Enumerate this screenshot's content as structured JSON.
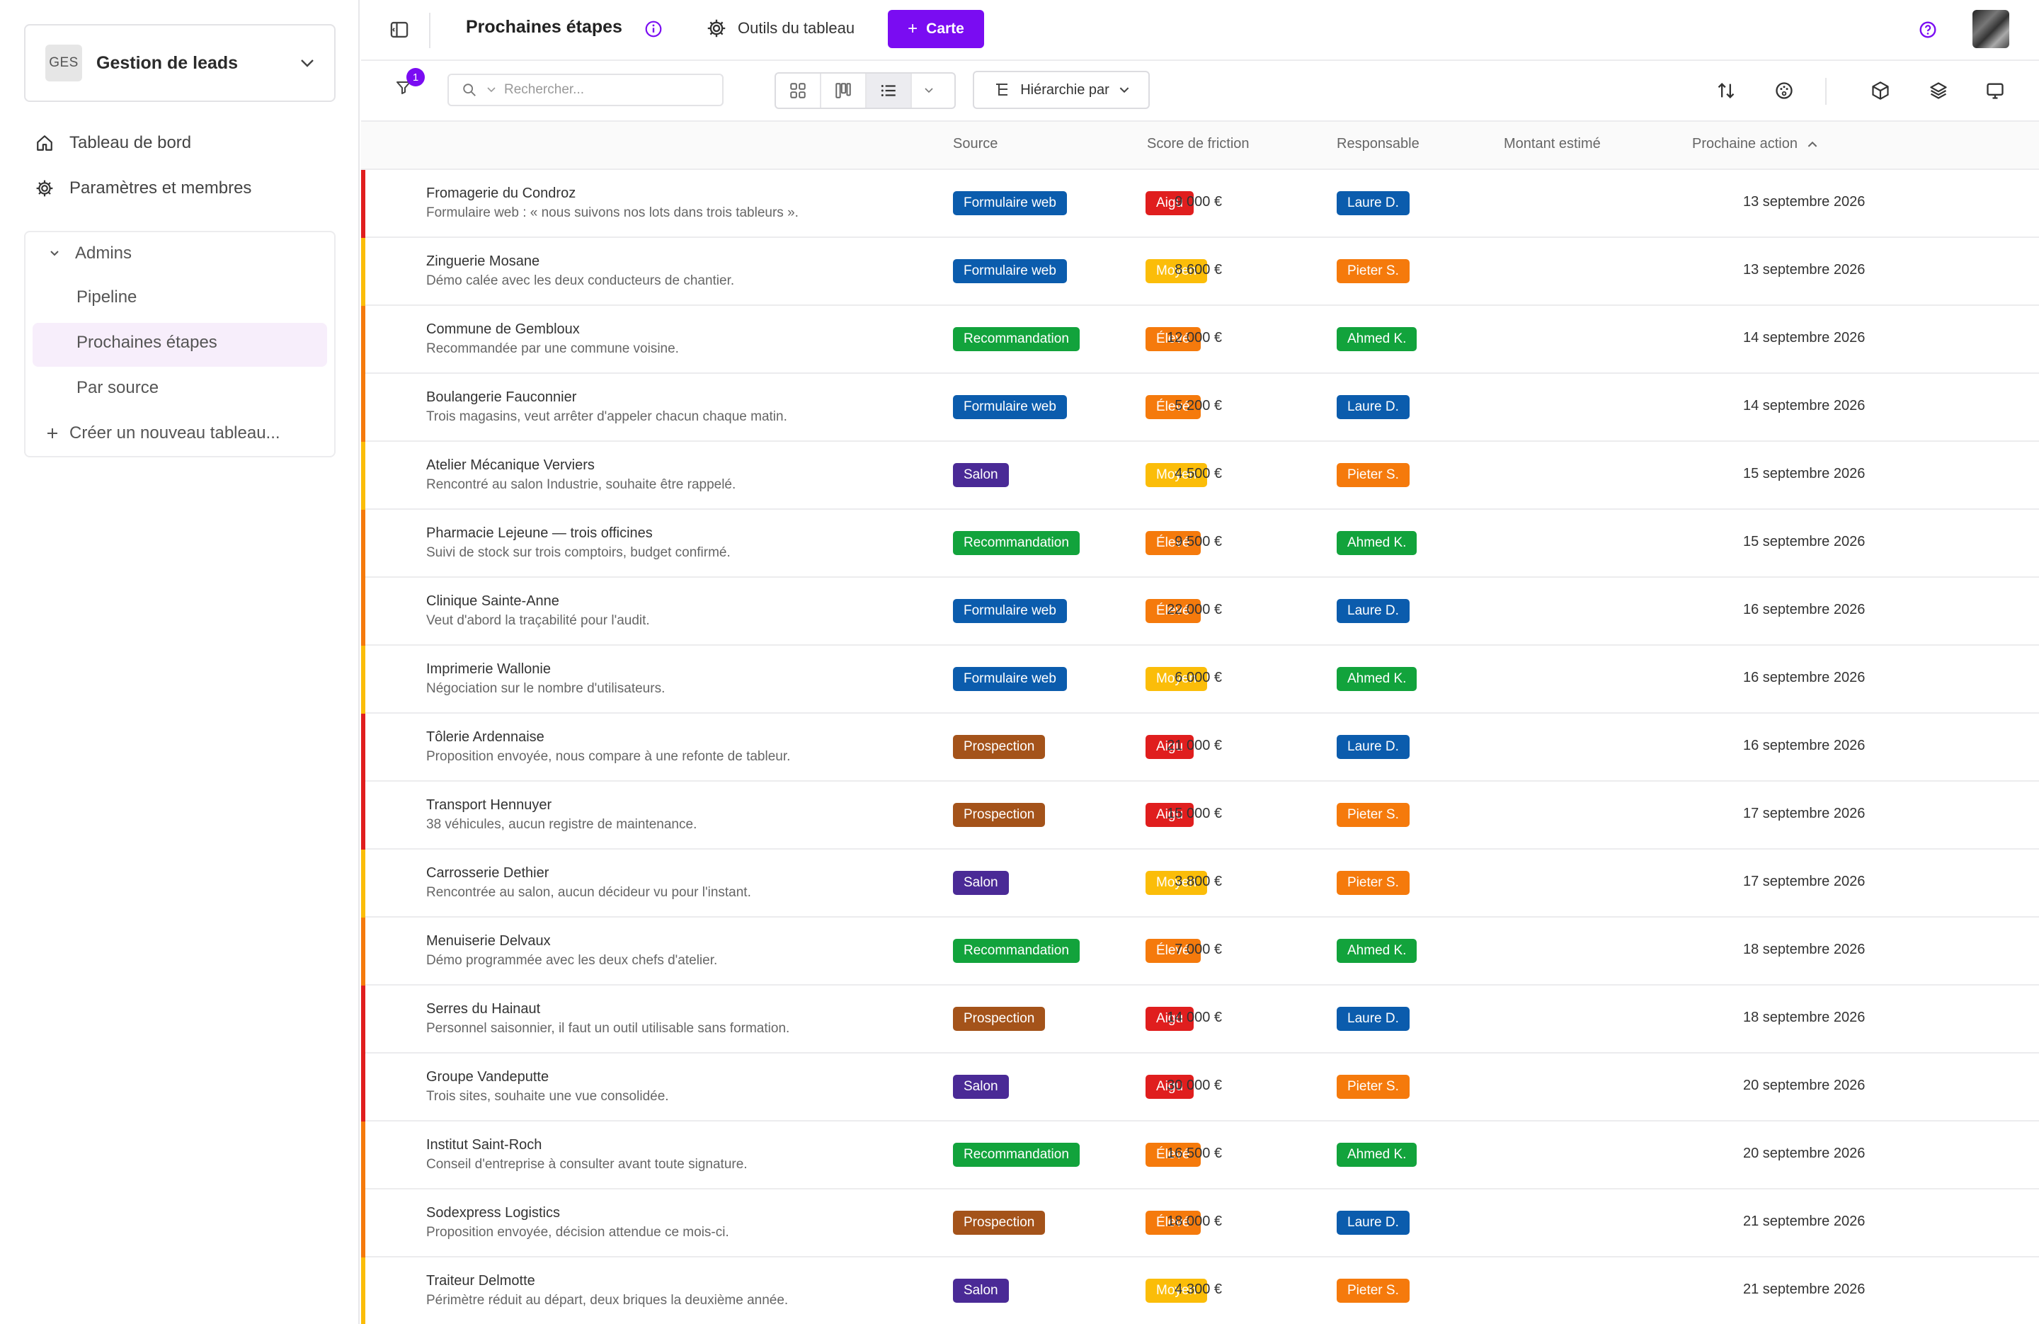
{
  "sidebar": {
    "workspace": {
      "badge": "GES",
      "name": "Gestion de leads"
    },
    "nav": [
      {
        "label": "Tableau de bord",
        "icon": "home-icon"
      },
      {
        "label": "Paramètres et membres",
        "icon": "gear-icon"
      }
    ],
    "boards": {
      "group": "Admins",
      "items": [
        "Pipeline",
        "Prochaines étapes",
        "Par source"
      ],
      "active": "Prochaines étapes",
      "create_label": "Créer un nouveau tableau..."
    }
  },
  "header": {
    "title": "Prochaines étapes",
    "tools_label": "Outils du tableau",
    "add_button": "Carte",
    "filter_count": "1",
    "search_placeholder": "Rechercher...",
    "hierarchy_label": "Hiérarchie par"
  },
  "table": {
    "columns": {
      "source": "Source",
      "friction": "Score de friction",
      "owner": "Responsable",
      "amount": "Montant estimé",
      "next_action": "Prochaine action"
    },
    "sort_column": "Prochaine action",
    "sort_direction": "ascending",
    "rows": [
      {
        "name": "Fromagerie du Condroz",
        "desc": "Formulaire web : « nous suivons nos lots dans trois tableurs ».",
        "source": "Formulaire web",
        "friction": "Aigu",
        "owner": "Laure D.",
        "amount": "9 000 €",
        "date": "13 septembre 2026"
      },
      {
        "name": "Zinguerie Mosane",
        "desc": "Démo calée avec les deux conducteurs de chantier.",
        "source": "Formulaire web",
        "friction": "Moyen",
        "owner": "Pieter S.",
        "amount": "8 600 €",
        "date": "13 septembre 2026"
      },
      {
        "name": "Commune de Gembloux",
        "desc": "Recommandée par une commune voisine.",
        "source": "Recommandation",
        "friction": "Élevé",
        "owner": "Ahmed K.",
        "amount": "12 000 €",
        "date": "14 septembre 2026"
      },
      {
        "name": "Boulangerie Fauconnier",
        "desc": "Trois magasins, veut arrêter d'appeler chacun chaque matin.",
        "source": "Formulaire web",
        "friction": "Élevé",
        "owner": "Laure D.",
        "amount": "5 200 €",
        "date": "14 septembre 2026"
      },
      {
        "name": "Atelier Mécanique Verviers",
        "desc": "Rencontré au salon Industrie, souhaite être rappelé.",
        "source": "Salon",
        "friction": "Moyen",
        "owner": "Pieter S.",
        "amount": "4 500 €",
        "date": "15 septembre 2026"
      },
      {
        "name": "Pharmacie Lejeune — trois officines",
        "desc": "Suivi de stock sur trois comptoirs, budget confirmé.",
        "source": "Recommandation",
        "friction": "Élevé",
        "owner": "Ahmed K.",
        "amount": "9 500 €",
        "date": "15 septembre 2026"
      },
      {
        "name": "Clinique Sainte-Anne",
        "desc": "Veut d'abord la traçabilité pour l'audit.",
        "source": "Formulaire web",
        "friction": "Élevé",
        "owner": "Laure D.",
        "amount": "22 000 €",
        "date": "16 septembre 2026"
      },
      {
        "name": "Imprimerie Wallonie",
        "desc": "Négociation sur le nombre d'utilisateurs.",
        "source": "Formulaire web",
        "friction": "Moyen",
        "owner": "Ahmed K.",
        "amount": "6 000 €",
        "date": "16 septembre 2026"
      },
      {
        "name": "Tôlerie Ardennaise",
        "desc": "Proposition envoyée, nous compare à une refonte de tableur.",
        "source": "Prospection",
        "friction": "Aigu",
        "owner": "Laure D.",
        "amount": "21 000 €",
        "date": "16 septembre 2026"
      },
      {
        "name": "Transport Hennuyer",
        "desc": "38 véhicules, aucun registre de maintenance.",
        "source": "Prospection",
        "friction": "Aigu",
        "owner": "Pieter S.",
        "amount": "15 000 €",
        "date": "17 septembre 2026"
      },
      {
        "name": "Carrosserie Dethier",
        "desc": "Rencontrée au salon, aucun décideur vu pour l'instant.",
        "source": "Salon",
        "friction": "Moyen",
        "owner": "Pieter S.",
        "amount": "3 800 €",
        "date": "17 septembre 2026"
      },
      {
        "name": "Menuiserie Delvaux",
        "desc": "Démo programmée avec les deux chefs d'atelier.",
        "source": "Recommandation",
        "friction": "Élevé",
        "owner": "Ahmed K.",
        "amount": "7 000 €",
        "date": "18 septembre 2026"
      },
      {
        "name": "Serres du Hainaut",
        "desc": "Personnel saisonnier, il faut un outil utilisable sans formation.",
        "source": "Prospection",
        "friction": "Aigu",
        "owner": "Laure D.",
        "amount": "14 000 €",
        "date": "18 septembre 2026"
      },
      {
        "name": "Groupe Vandeputte",
        "desc": "Trois sites, souhaite une vue consolidée.",
        "source": "Salon",
        "friction": "Aigu",
        "owner": "Pieter S.",
        "amount": "30 000 €",
        "date": "20 septembre 2026"
      },
      {
        "name": "Institut Saint-Roch",
        "desc": "Conseil d'entreprise à consulter avant toute signature.",
        "source": "Recommandation",
        "friction": "Élevé",
        "owner": "Ahmed K.",
        "amount": "16 500 €",
        "date": "20 septembre 2026"
      },
      {
        "name": "Sodexpress Logistics",
        "desc": "Proposition envoyée, décision attendue ce mois-ci.",
        "source": "Prospection",
        "friction": "Élevé",
        "owner": "Laure D.",
        "amount": "18 000 €",
        "date": "21 septembre 2026"
      },
      {
        "name": "Traiteur Delmotte",
        "desc": "Périmètre réduit au départ, deux briques la deuxième année.",
        "source": "Salon",
        "friction": "Moyen",
        "owner": "Pieter S.",
        "amount": "4 300 €",
        "date": "21 septembre 2026"
      }
    ]
  },
  "colors": {
    "accent": "#7a0cf2",
    "source": {
      "Formulaire web": "#0b5cad",
      "Recommandation": "#12a33c",
      "Salon": "#4a2a96",
      "Prospection": "#a4531a"
    },
    "friction": {
      "Aigu": "#e01e1e",
      "Moyen": "#fbbd09",
      "Élevé": "#f57a0c"
    },
    "owner": {
      "Laure D.": "#0b5cad",
      "Pieter S.": "#f57a0c",
      "Ahmed K.": "#12a33c"
    }
  }
}
